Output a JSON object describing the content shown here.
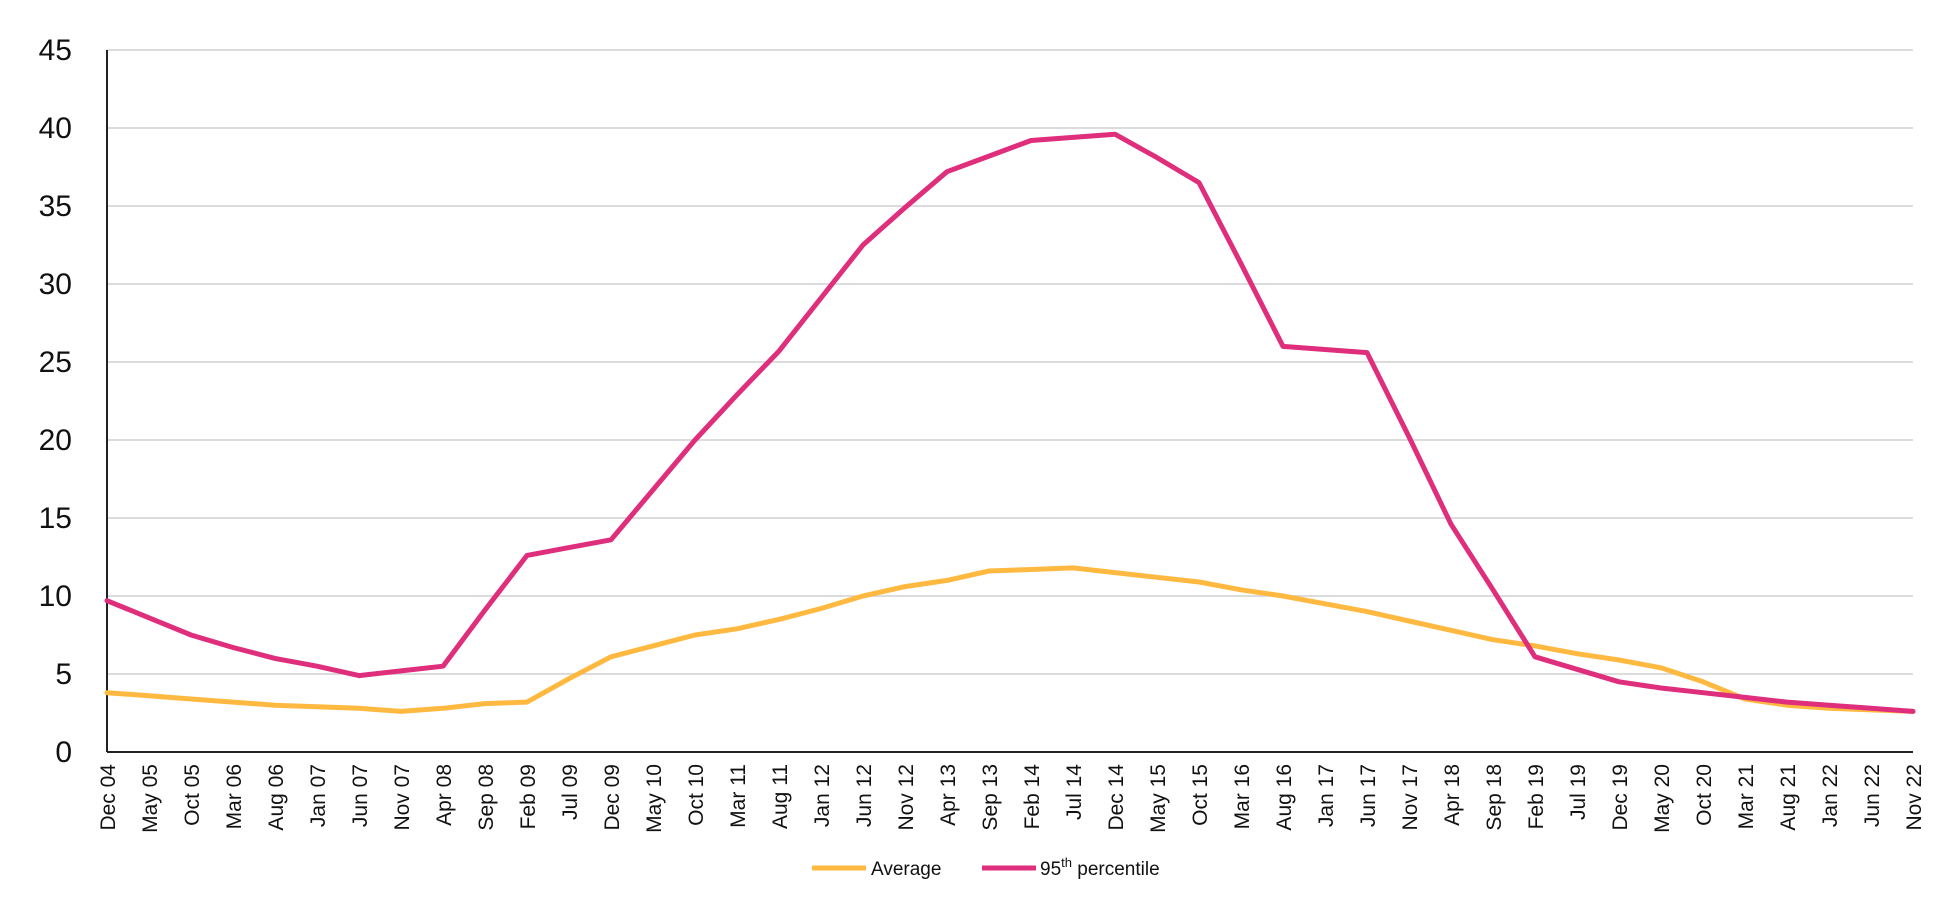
{
  "chart_data": {
    "type": "line",
    "x": [
      "Dec 04",
      "May 05",
      "Oct 05",
      "Mar 06",
      "Aug 06",
      "Jan 07",
      "Jun 07",
      "Nov 07",
      "Apr 08",
      "Sep 08",
      "Feb 09",
      "Jul 09",
      "Dec 09",
      "May 10",
      "Oct 10",
      "Mar 11",
      "Aug 11",
      "Jan 12",
      "Jun 12",
      "Nov 12",
      "Apr 13",
      "Sep 13",
      "Feb 14",
      "Jul 14",
      "Dec 14",
      "May 15",
      "Oct 15",
      "Mar 16",
      "Aug 16",
      "Jan 17",
      "Jun 17",
      "Nov 17",
      "Apr 18",
      "Sep 18",
      "Feb 19",
      "Jul 19",
      "Dec 19",
      "May 20",
      "Oct 20",
      "Mar 21",
      "Aug 21",
      "Jan 22",
      "Jun 22",
      "Nov 22"
    ],
    "series": [
      {
        "name": "Average",
        "color": "#FFB940",
        "values": [
          3.8,
          3.6,
          3.4,
          3.2,
          3.0,
          2.9,
          2.8,
          2.6,
          2.8,
          3.1,
          3.2,
          4.7,
          6.1,
          6.8,
          7.5,
          7.9,
          8.5,
          9.2,
          10.0,
          10.6,
          11.0,
          11.6,
          11.7,
          11.8,
          11.5,
          11.2,
          10.9,
          10.4,
          10.0,
          9.5,
          9.0,
          8.4,
          7.8,
          7.2,
          6.8,
          6.3,
          5.9,
          5.4,
          4.5,
          3.4,
          3.0,
          2.8,
          2.7,
          2.6
        ]
      },
      {
        "name": "95th percentile",
        "name_base": "95",
        "name_sup": "th",
        "name_rest": " percentile",
        "color": "#DE2E7C",
        "values": [
          9.7,
          8.6,
          7.5,
          6.7,
          6.0,
          5.5,
          4.9,
          5.2,
          5.5,
          9.1,
          12.6,
          13.1,
          13.6,
          16.8,
          20.0,
          22.9,
          25.7,
          29.1,
          32.5,
          34.9,
          37.2,
          38.2,
          39.2,
          39.4,
          39.6,
          38.1,
          36.5,
          31.3,
          26.0,
          25.8,
          25.6,
          20.2,
          14.6,
          10.4,
          6.1,
          5.3,
          4.5,
          4.1,
          3.8,
          3.5,
          3.2,
          3.0,
          2.8,
          2.6
        ]
      }
    ],
    "ylim": [
      0,
      45
    ],
    "yticks": [
      0,
      5,
      10,
      15,
      20,
      25,
      30,
      35,
      40,
      45
    ],
    "grid": true,
    "legend": "bottom-center",
    "title": "",
    "xlabel": "",
    "ylabel": ""
  }
}
